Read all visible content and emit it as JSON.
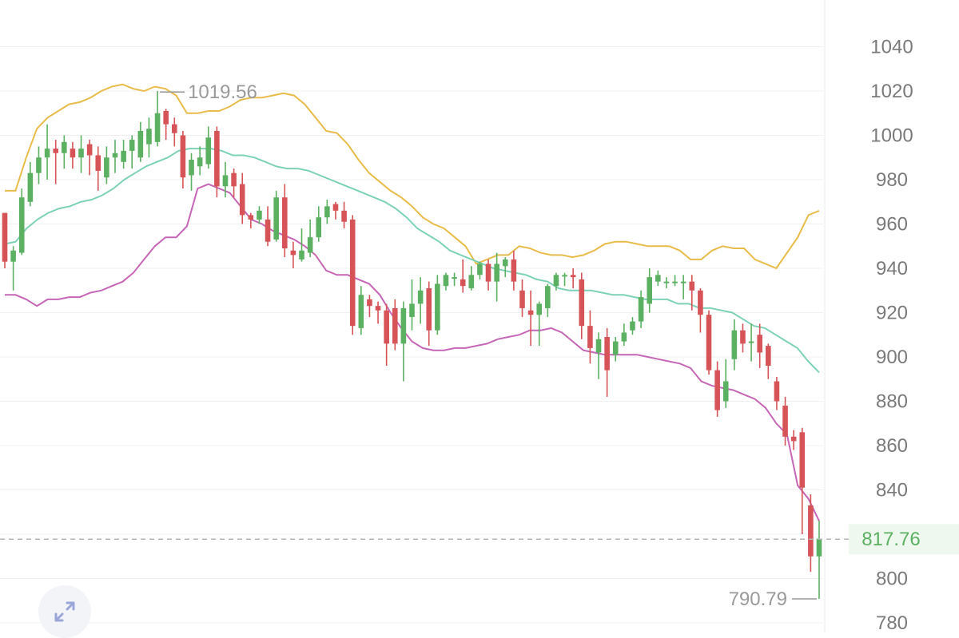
{
  "chart_data": {
    "type": "candlestick",
    "overlays": [
      "bollinger-upper",
      "bollinger-middle",
      "bollinger-lower"
    ],
    "ylim": [
      776,
      1052
    ],
    "y_ticks": [
      "780",
      "800",
      "820",
      "840",
      "860",
      "880",
      "900",
      "920",
      "940",
      "960",
      "980",
      "1000",
      "1020",
      "1040"
    ],
    "y_tick_labels": {
      "t780": "780",
      "t800": "800",
      "t840": "840",
      "t860": "860",
      "t880": "880",
      "t900": "900",
      "t920": "920",
      "t940": "940",
      "t960": "960",
      "t980": "980",
      "t1000": "1000",
      "t1020": "1020",
      "t1040": "1040"
    },
    "current_price": "817.76",
    "current_price_value": 817.76,
    "max_label": "1019.56",
    "max_value": 1019.56,
    "min_label": "790.79",
    "min_value": 790.79,
    "candles": [
      [
        965,
        943,
        940,
        965
      ],
      [
        943,
        948,
        930,
        950
      ],
      [
        947,
        972,
        946,
        976
      ],
      [
        970,
        983,
        968,
        988
      ],
      [
        983,
        990,
        978,
        995
      ],
      [
        990,
        994,
        980,
        1005
      ],
      [
        994,
        992,
        978,
        998
      ],
      [
        992,
        997,
        985,
        1000
      ],
      [
        994,
        990,
        985,
        997
      ],
      [
        990,
        994,
        983,
        1000
      ],
      [
        996,
        991,
        982,
        998
      ],
      [
        991,
        984,
        975,
        995
      ],
      [
        981,
        990,
        978,
        995
      ],
      [
        990,
        992,
        983,
        998
      ],
      [
        988,
        993,
        985,
        998
      ],
      [
        993,
        998,
        985,
        1000
      ],
      [
        990,
        1002,
        988,
        1006
      ],
      [
        996,
        1003,
        990,
        1008
      ],
      [
        997,
        1010,
        995,
        1020
      ],
      [
        1011,
        1005,
        998,
        1012
      ],
      [
        1005,
        1001,
        995,
        1008
      ],
      [
        1000,
        981,
        976,
        1002
      ],
      [
        982,
        989,
        975,
        992
      ],
      [
        986,
        990,
        982,
        995
      ],
      [
        987,
        999,
        985,
        1004
      ],
      [
        1002,
        977,
        972,
        1004
      ],
      [
        977,
        982,
        972,
        988
      ],
      [
        983,
        977,
        972,
        985
      ],
      [
        978,
        964,
        960,
        983
      ],
      [
        964,
        962,
        958,
        965
      ],
      [
        962,
        966,
        960,
        968
      ],
      [
        962,
        952,
        950,
        968
      ],
      [
        953,
        972,
        952,
        975
      ],
      [
        972,
        949,
        945,
        978
      ],
      [
        948,
        946,
        940,
        952
      ],
      [
        944,
        948,
        943,
        958
      ],
      [
        947,
        954,
        945,
        962
      ],
      [
        954,
        963,
        952,
        968
      ],
      [
        963,
        968,
        960,
        971
      ],
      [
        969,
        966,
        962,
        970
      ],
      [
        966,
        961,
        958,
        970
      ],
      [
        962,
        914,
        910,
        964
      ],
      [
        913,
        928,
        910,
        932
      ],
      [
        926,
        923,
        918,
        928
      ],
      [
        923,
        921,
        915,
        925
      ],
      [
        921,
        906,
        896,
        924
      ],
      [
        922,
        906,
        903,
        926
      ],
      [
        906,
        922,
        889,
        925
      ],
      [
        918,
        924,
        912,
        935
      ],
      [
        924,
        930,
        915,
        936
      ],
      [
        931,
        912,
        905,
        934
      ],
      [
        912,
        933,
        910,
        937
      ],
      [
        932,
        937,
        930,
        938
      ],
      [
        936,
        936,
        932,
        938
      ],
      [
        935,
        932,
        929,
        944
      ],
      [
        931,
        937,
        930,
        941
      ],
      [
        937,
        942,
        935,
        943
      ],
      [
        942,
        934,
        930,
        944
      ],
      [
        934,
        942,
        925,
        947
      ],
      [
        941,
        944,
        936,
        945
      ],
      [
        944,
        934,
        930,
        948
      ],
      [
        930,
        922,
        918,
        935
      ],
      [
        921,
        919,
        905,
        930
      ],
      [
        919,
        924,
        905,
        925
      ],
      [
        922,
        932,
        918,
        933
      ],
      [
        932,
        937,
        930,
        938
      ],
      [
        937,
        937,
        932,
        938
      ],
      [
        937,
        936,
        931,
        940
      ],
      [
        935,
        914,
        908,
        938
      ],
      [
        914,
        904,
        897,
        921
      ],
      [
        902,
        908,
        890,
        911
      ],
      [
        909,
        894,
        882,
        913
      ],
      [
        901,
        907,
        898,
        909
      ],
      [
        907,
        911,
        905,
        915
      ],
      [
        912,
        916,
        910,
        918
      ],
      [
        916,
        927,
        913,
        930
      ],
      [
        924,
        936,
        920,
        940
      ],
      [
        934,
        937,
        932,
        939
      ],
      [
        934,
        934,
        931,
        936
      ],
      [
        934,
        934,
        932,
        937
      ],
      [
        934,
        934,
        926,
        937
      ],
      [
        934,
        930,
        921,
        937
      ],
      [
        930,
        919,
        911,
        931
      ],
      [
        919,
        894,
        892,
        921
      ],
      [
        894,
        876,
        873,
        898
      ],
      [
        880,
        889,
        877,
        899
      ],
      [
        899,
        912,
        894,
        917
      ],
      [
        912,
        906,
        902,
        915
      ],
      [
        907,
        907,
        898,
        915
      ],
      [
        910,
        902,
        895,
        915
      ],
      [
        905,
        896,
        890,
        906
      ],
      [
        889,
        880,
        876,
        891
      ],
      [
        878,
        864,
        860,
        882
      ],
      [
        864,
        862,
        858,
        867
      ],
      [
        866,
        841,
        820,
        868
      ],
      [
        833,
        810,
        803,
        838
      ],
      [
        810,
        818,
        790.79,
        826
      ]
    ],
    "upper_band": [
      975,
      975,
      990,
      1003,
      1008,
      1011,
      1014,
      1015,
      1017,
      1020,
      1022,
      1023,
      1021,
      1020,
      1022,
      1021,
      1018,
      1010,
      1010,
      1011,
      1011,
      1013,
      1016,
      1017,
      1017,
      1018,
      1019,
      1018,
      1014,
      1008,
      1002,
      1001,
      996,
      989,
      983,
      979,
      975,
      972,
      968,
      963,
      960,
      958,
      954,
      950,
      942,
      944,
      946,
      946,
      950,
      949,
      947,
      946,
      946,
      945,
      946,
      948,
      951,
      952,
      952,
      951,
      950,
      950,
      950,
      948,
      944,
      944,
      948,
      950,
      949,
      949,
      944,
      942,
      940,
      947,
      954,
      964,
      966
    ],
    "middle_band": [
      951,
      952,
      958,
      962,
      965,
      967,
      968,
      970,
      971,
      973,
      976,
      980,
      983,
      986,
      988,
      990,
      993,
      994,
      994,
      994,
      993,
      991,
      991,
      990,
      988,
      986,
      985,
      985,
      984,
      982,
      980,
      978,
      976,
      974,
      972,
      970,
      967,
      963,
      958,
      955,
      952,
      948,
      946,
      944,
      942,
      940,
      939,
      938,
      937,
      935,
      934,
      931,
      930,
      930,
      930,
      929,
      928,
      928,
      927,
      926,
      926,
      926,
      924,
      924,
      922,
      922,
      921,
      920,
      917,
      914,
      913,
      910,
      907,
      904,
      898,
      893
    ],
    "lower_band": [
      928,
      928,
      926,
      923,
      926,
      926,
      927,
      927,
      929,
      930,
      932,
      934,
      938,
      944,
      950,
      954,
      954,
      959,
      976,
      978,
      976,
      974,
      968,
      962,
      960,
      957,
      955,
      953,
      950,
      946,
      939,
      937,
      937,
      935,
      933,
      928,
      920,
      913,
      907,
      904,
      903,
      903,
      904,
      904,
      905,
      906,
      908,
      909,
      910,
      912,
      912,
      913,
      911,
      907,
      903,
      902,
      901,
      901,
      901,
      901,
      900,
      899,
      898,
      897,
      895,
      889,
      887,
      886,
      885,
      883,
      881,
      877,
      870,
      865,
      842,
      836,
      826
    ]
  },
  "ui": {
    "expand_icon": "expand-arrows-icon",
    "colors": {
      "up": "#5cb062",
      "down": "#d65358",
      "upper_band": "#e8bc4a",
      "middle_band": "#7dd1b7",
      "lower_band": "#c666b6",
      "price_label": "#5cb062"
    }
  }
}
